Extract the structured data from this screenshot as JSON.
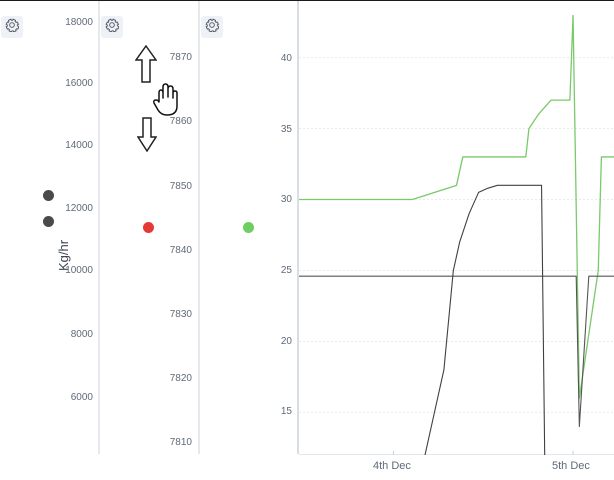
{
  "panels": {
    "left_axis": {
      "unit_label": "Kg/hr",
      "ticks": [
        "18000",
        "16000",
        "14000",
        "12000",
        "10000",
        "8000",
        "6000"
      ]
    },
    "middle_axis": {
      "ticks": [
        "7870",
        "7860",
        "7850",
        "7840",
        "7830",
        "7820",
        "7810"
      ]
    },
    "right_axis": {
      "ticks": [
        "40",
        "35",
        "30",
        "25",
        "20",
        "15"
      ]
    }
  },
  "legend": {
    "left_dots": [
      "#4a4a4a",
      "#4a4a4a"
    ],
    "middle_dot": "#e53935",
    "right_dot": "#6ccf5f"
  },
  "icons": {
    "gear": "gear-icon",
    "pan_up": "arrow-up-icon",
    "pan_down": "arrow-down-icon",
    "hand": "hand-icon"
  },
  "chart_data": {
    "type": "line",
    "x": [
      "4th Dec",
      "5th Dec"
    ],
    "ylim": [
      12,
      43
    ],
    "series": [
      {
        "color": "#7ac96b",
        "values": [
          [
            0,
            30
          ],
          [
            0.36,
            30
          ],
          [
            0.5,
            31
          ],
          [
            0.52,
            33
          ],
          [
            0.67,
            33
          ],
          [
            0.72,
            33
          ],
          [
            0.73,
            35
          ],
          [
            0.76,
            36
          ],
          [
            0.8,
            37
          ],
          [
            0.86,
            37
          ],
          [
            0.87,
            43
          ],
          [
            0.89,
            16
          ],
          [
            0.95,
            25
          ],
          [
            0.96,
            33
          ],
          [
            1,
            33
          ]
        ]
      },
      {
        "color": "#555555",
        "values": [
          [
            0,
            24.6
          ],
          [
            0.88,
            24.6
          ],
          [
            0.89,
            14
          ],
          [
            0.92,
            24.6
          ],
          [
            1,
            24.6
          ]
        ]
      },
      {
        "color": "#404040",
        "values": [
          [
            0.4,
            12
          ],
          [
            0.46,
            18
          ],
          [
            0.49,
            25
          ],
          [
            0.51,
            27
          ],
          [
            0.54,
            29
          ],
          [
            0.57,
            30.5
          ],
          [
            0.6,
            30.8
          ],
          [
            0.63,
            31
          ],
          [
            0.74,
            31
          ],
          [
            0.77,
            31
          ],
          [
            0.78,
            12
          ]
        ]
      }
    ]
  }
}
